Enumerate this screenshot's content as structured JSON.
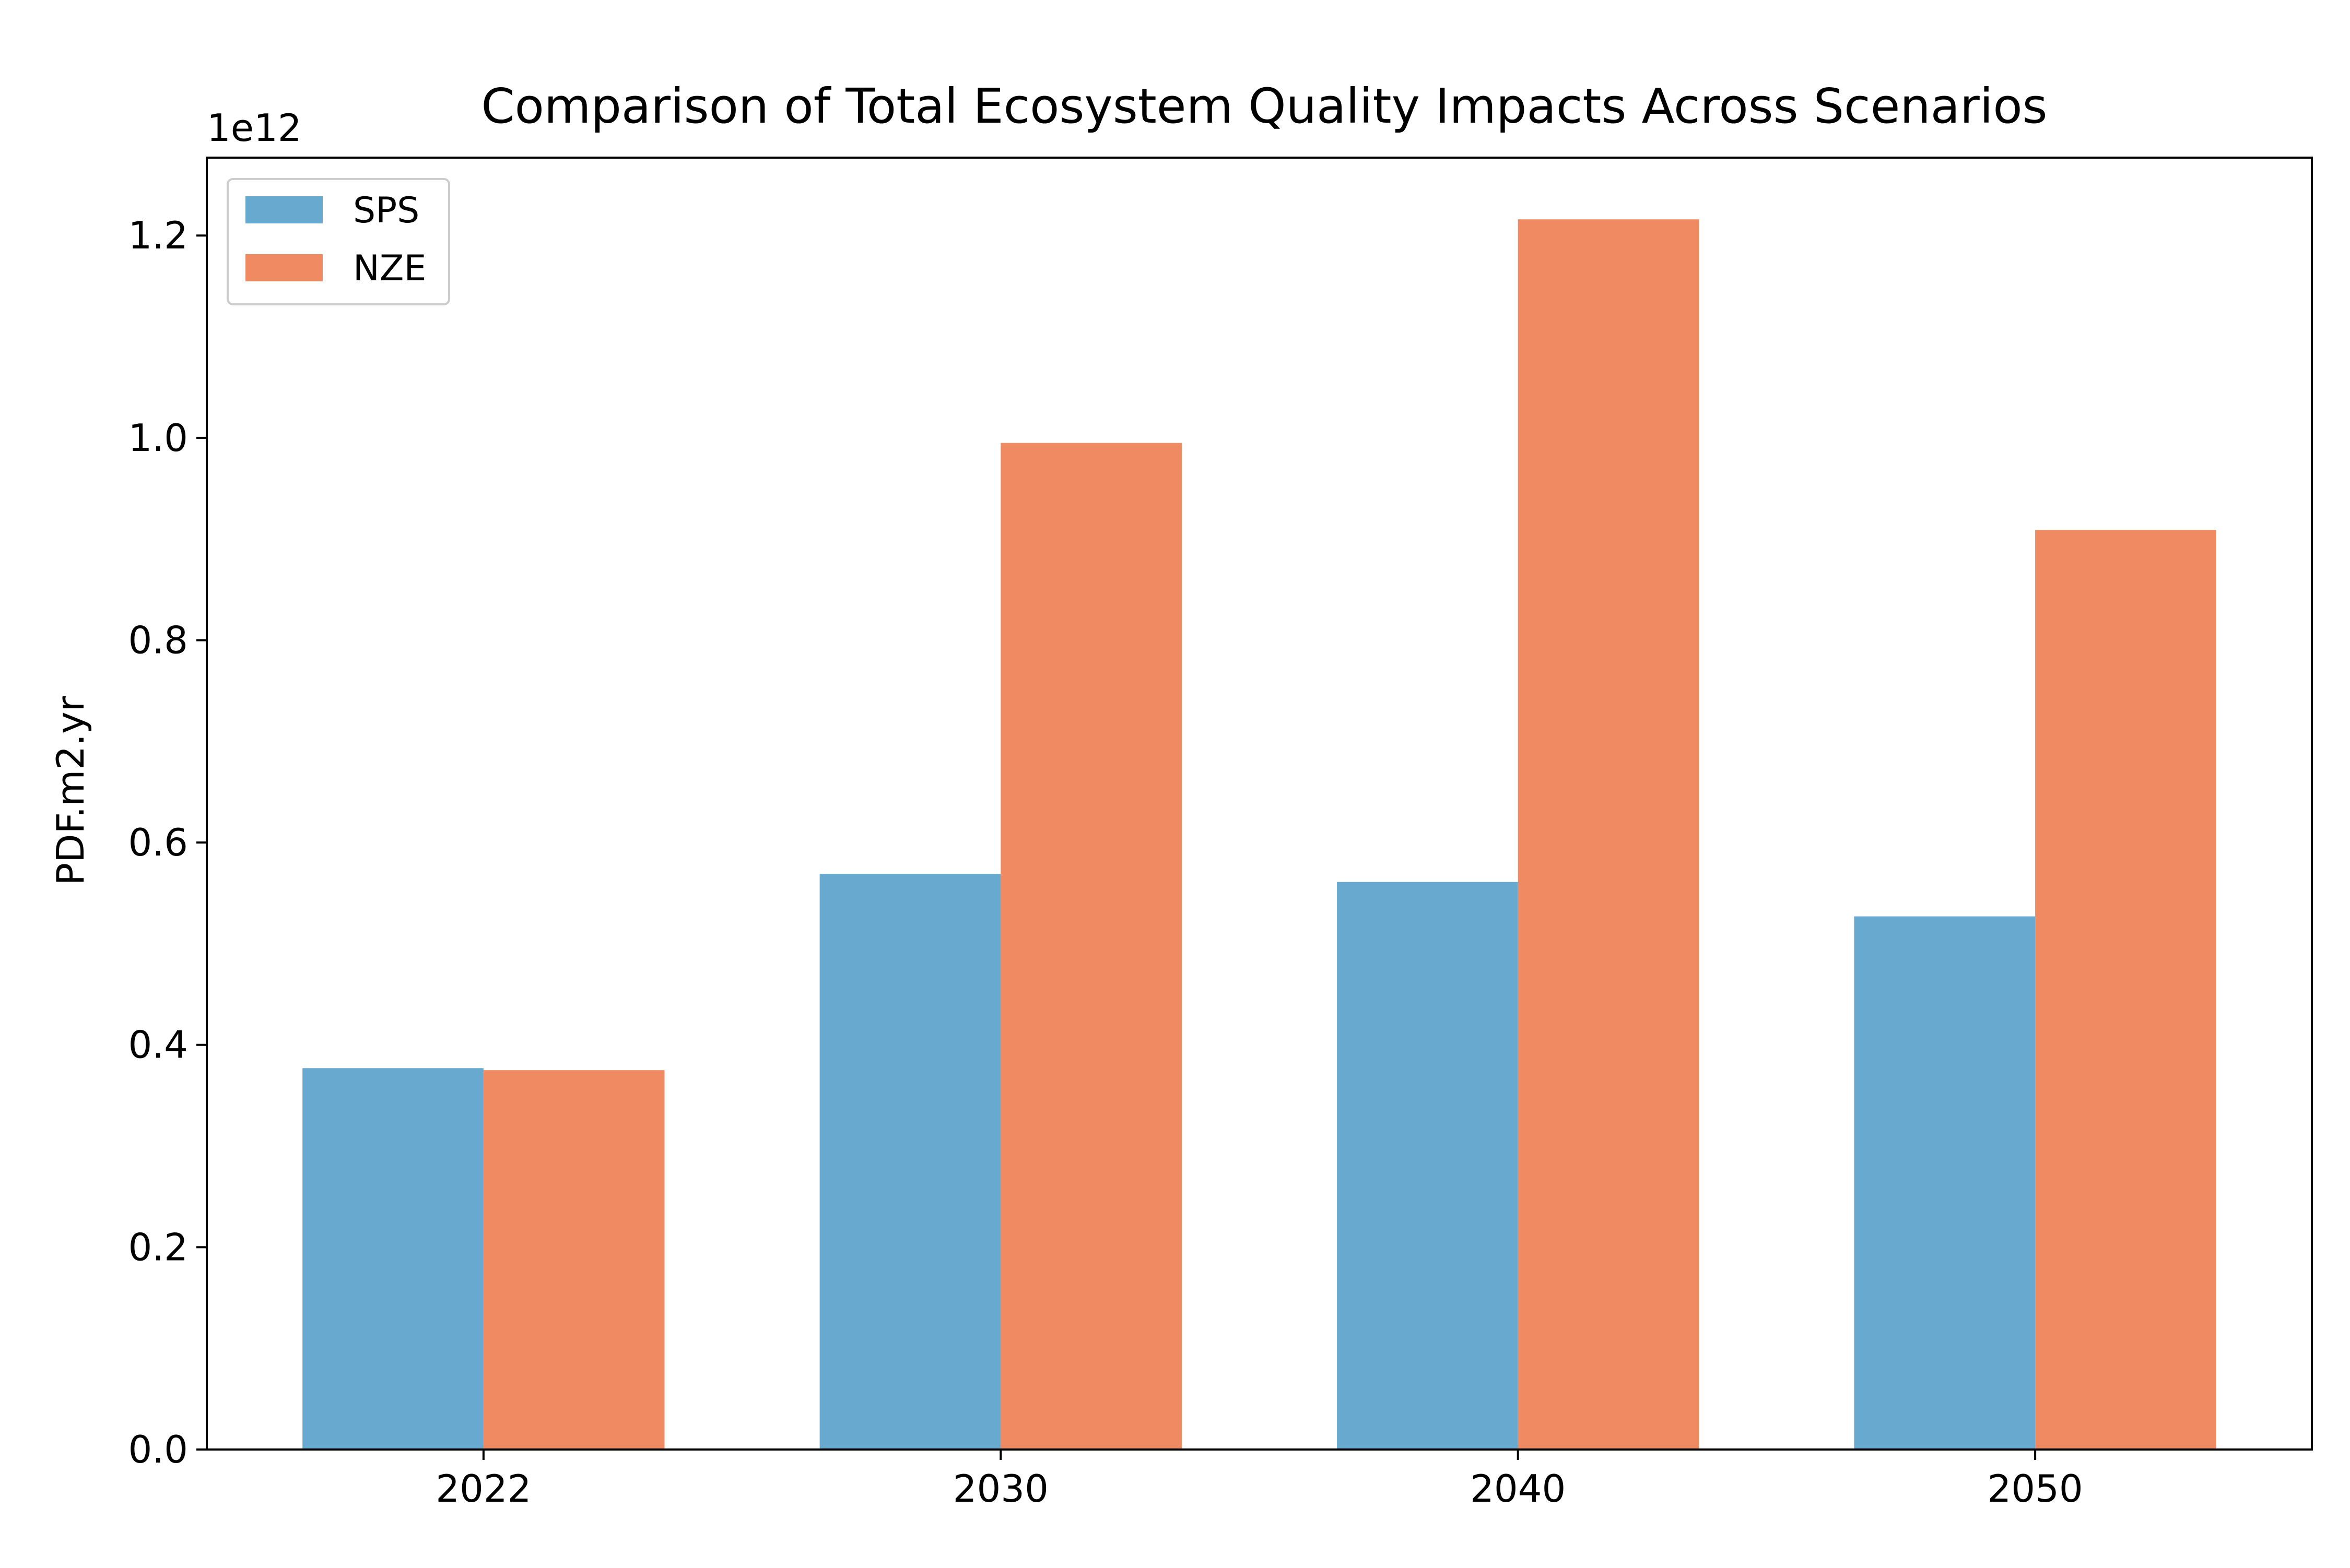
{
  "chart_data": {
    "type": "bar",
    "title": "Comparison of Total Ecosystem Quality Impacts Across Scenarios",
    "xlabel": "",
    "ylabel": "PDF.m2.yr",
    "y_offset_label": "1e12",
    "categories": [
      "2022",
      "2030",
      "2040",
      "2050"
    ],
    "series": [
      {
        "name": "SPS",
        "color": "#67a9cf",
        "values": [
          0.377,
          0.569,
          0.561,
          0.527
        ]
      },
      {
        "name": "NZE",
        "color": "#ef8a62",
        "values": [
          0.375,
          0.995,
          1.216,
          0.909
        ]
      }
    ],
    "ylim": [
      0,
      1.277
    ],
    "y_ticks": [
      0.0,
      0.2,
      0.4,
      0.6,
      0.8,
      1.0,
      1.2
    ],
    "y_tick_labels": [
      "0.0",
      "0.2",
      "0.4",
      "0.6",
      "0.8",
      "1.0",
      "1.2"
    ],
    "grid": false,
    "legend_position": "top-left"
  }
}
